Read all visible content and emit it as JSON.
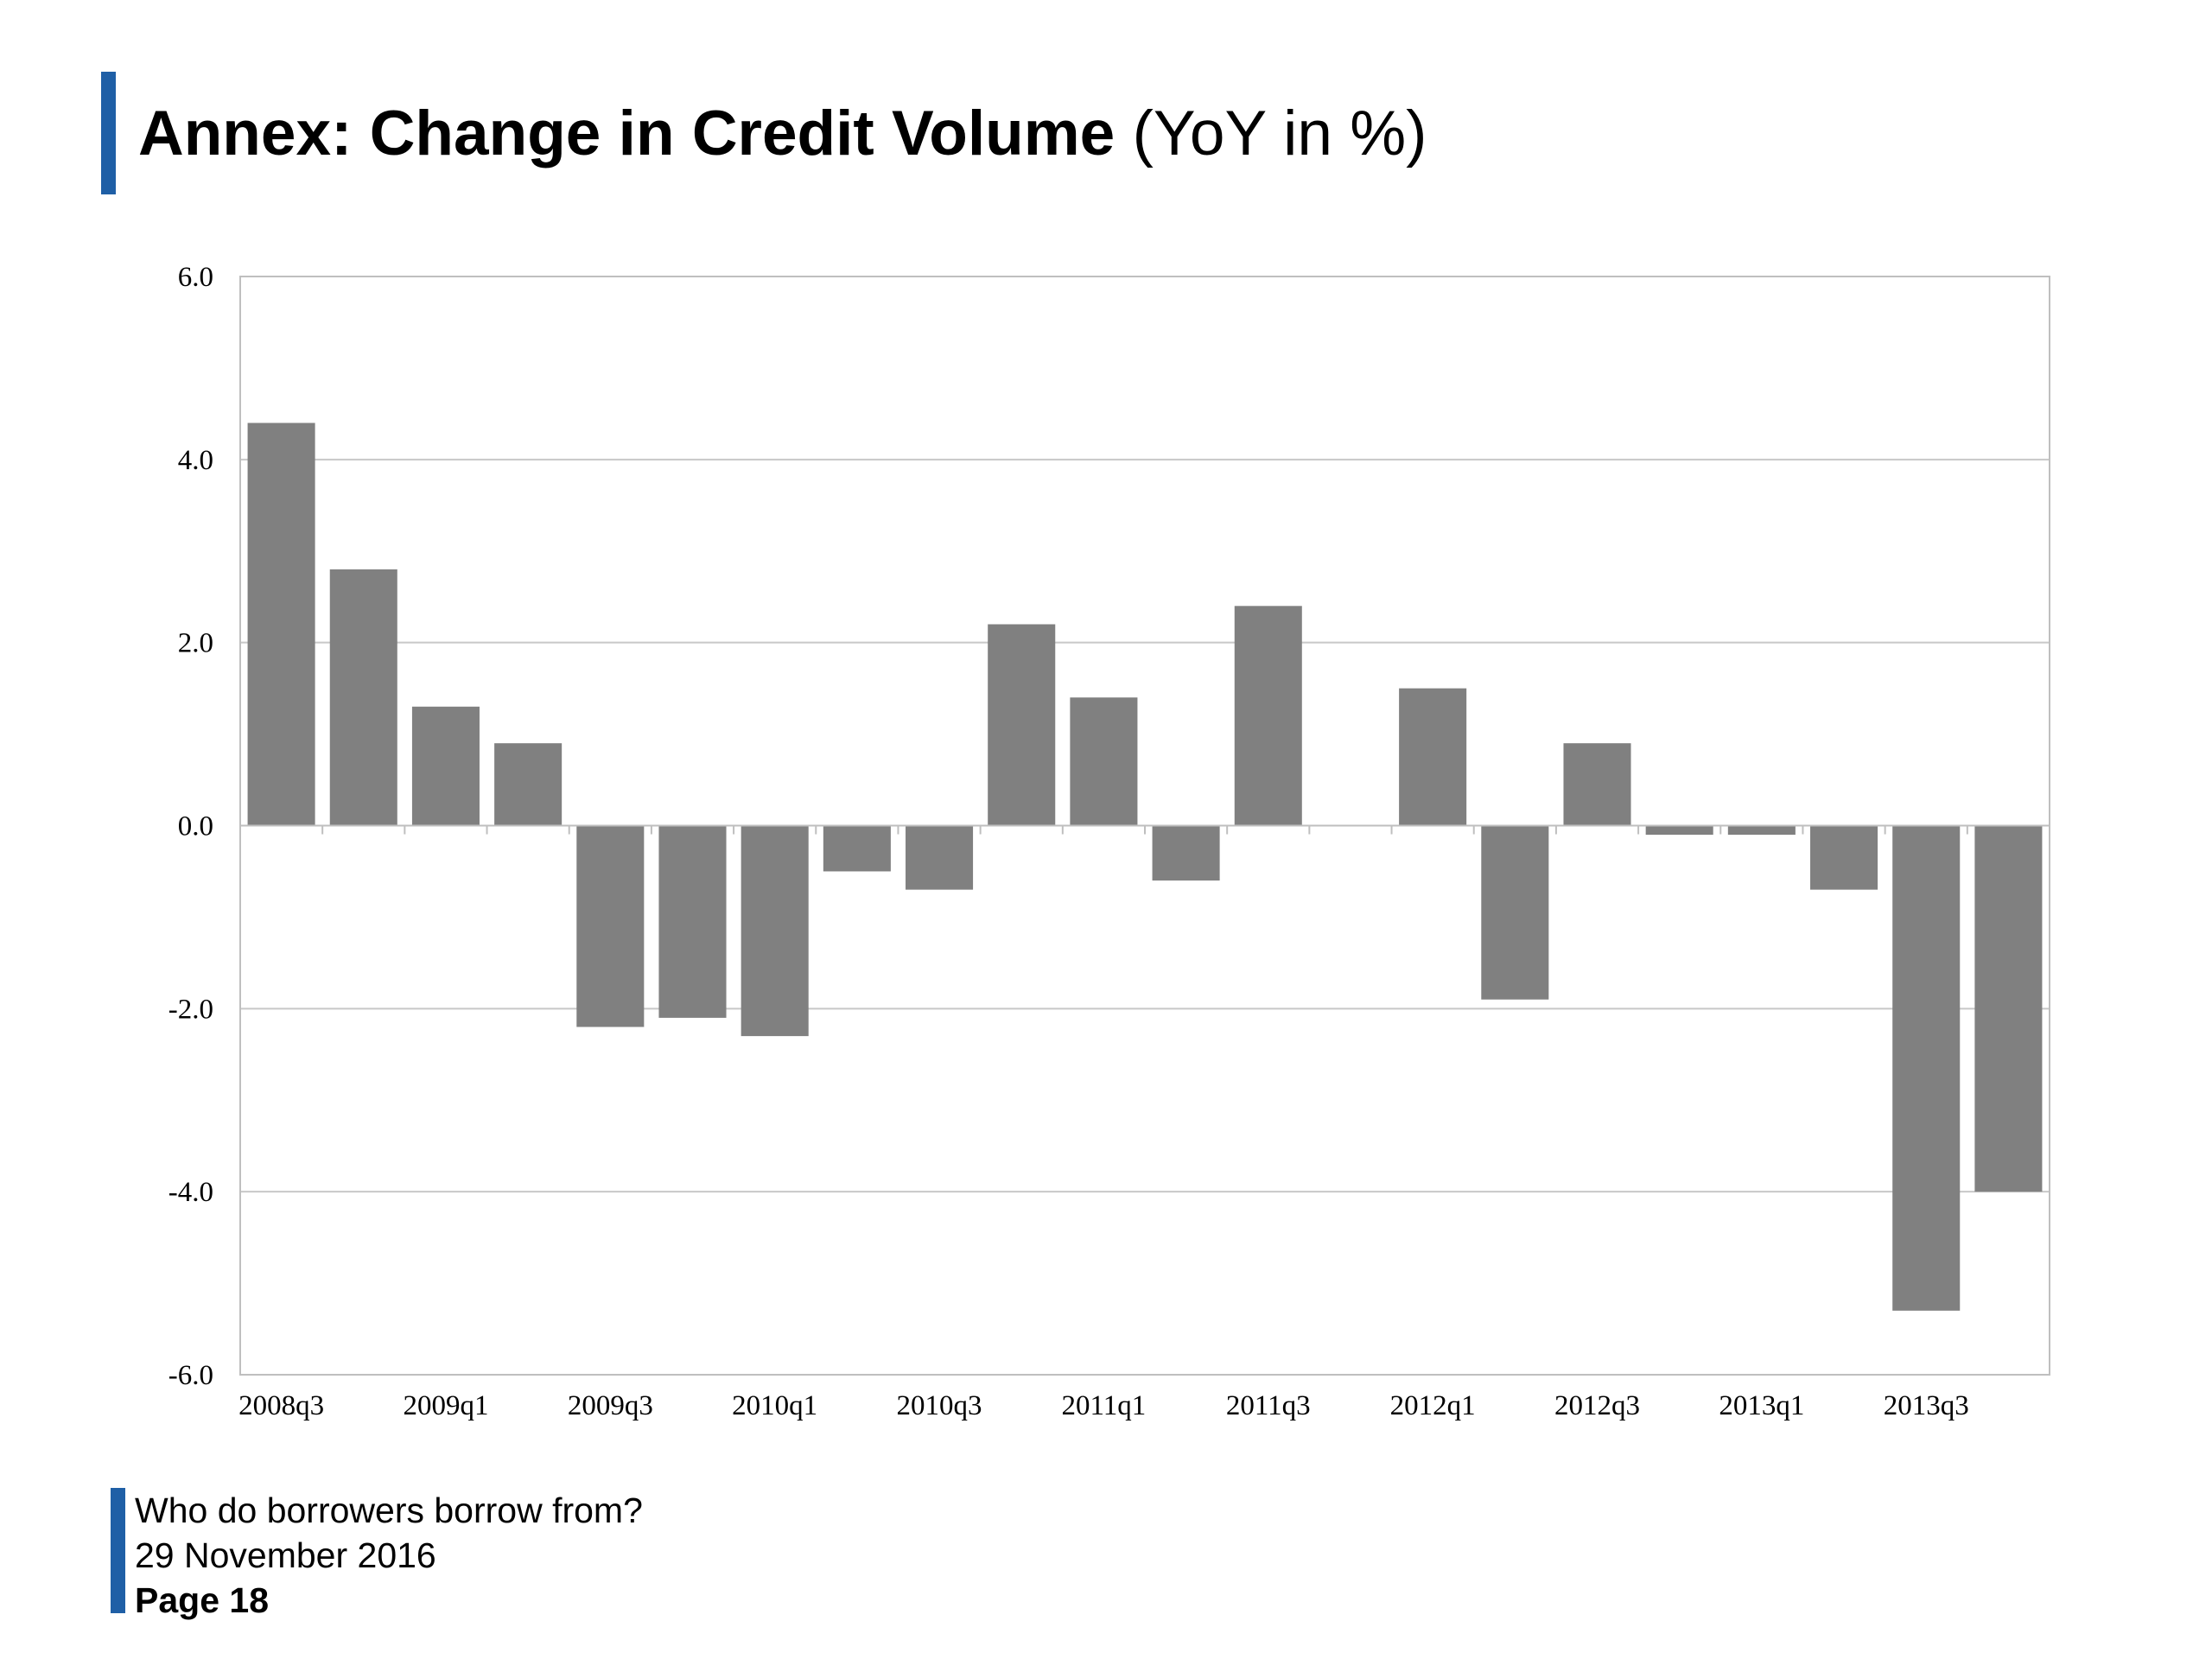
{
  "colors": {
    "accent": "#1f5fa6",
    "bar": "#808080",
    "grid": "#c8c8c8",
    "axis": "#bfbfbf"
  },
  "slide": {
    "title_bold": "Annex: Change in Credit Volume",
    "title_rest": "(YoY in %)"
  },
  "footer": {
    "line1": "Who do borrowers borrow from?",
    "line2": "29 November 2016",
    "page": "Page 18"
  },
  "chart_data": {
    "type": "bar",
    "title": "",
    "xlabel": "",
    "ylabel": "",
    "ylim": [
      -6.0,
      6.0
    ],
    "yticks": [
      "6.0",
      "4.0",
      "2.0",
      "0.0",
      "-2.0",
      "-4.0",
      "-6.0"
    ],
    "grid": true,
    "categories": [
      "2008q3",
      "2008q4",
      "2009q1",
      "2009q2",
      "2009q3",
      "2009q4",
      "2010q1",
      "2010q2",
      "2010q3",
      "2010q4",
      "2011q1",
      "2011q2",
      "2011q3",
      "2011q4",
      "2012q1",
      "2012q2",
      "2012q3",
      "2012q4",
      "2013q1",
      "2013q2",
      "2013q3",
      "2013q4"
    ],
    "shown_tick_labels": [
      "2008q3",
      "2009q1",
      "2009q3",
      "2010q1",
      "2010q3",
      "2011q1",
      "2011q3",
      "2012q1",
      "2012q3",
      "2013q1",
      "2013q3"
    ],
    "values": [
      4.4,
      2.8,
      1.3,
      0.9,
      -2.2,
      -2.1,
      -2.3,
      -0.5,
      -0.7,
      2.2,
      1.4,
      -0.6,
      2.4,
      0.0,
      1.5,
      -1.9,
      0.9,
      -0.1,
      -0.1,
      -0.7,
      -5.3,
      -4.0
    ]
  }
}
